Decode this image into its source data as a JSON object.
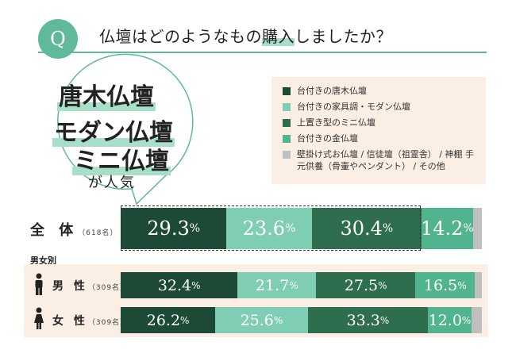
{
  "header": {
    "q_badge": "Q",
    "question_pre": "仏壇はどのようなもの",
    "question_highlight": "購入",
    "question_post": "しましたか？"
  },
  "callout": {
    "line1": "唐木仏壇",
    "line2": "モダン仏壇",
    "line3": "ミニ仏壇",
    "line4": "が人気"
  },
  "colors": {
    "accent": "#5fb99a",
    "panel_bg": "#fbeee4"
  },
  "chart_data": {
    "type": "bar",
    "orientation": "horizontal-stacked-100",
    "title": "仏壇はどのようなもの購入しましたか？",
    "group_label": "男女別",
    "categories": [
      {
        "label": "全 体",
        "n": "（618名）"
      },
      {
        "label": "男 性",
        "n": "（309名）"
      },
      {
        "label": "女 性",
        "n": "（309名）"
      }
    ],
    "series": [
      {
        "name": "台付きの唐木仏壇",
        "color": "#1c4a36",
        "values": [
          29.3,
          32.4,
          26.2
        ]
      },
      {
        "name": "台付きの家具調・モダン仏壇",
        "color": "#7fceb3",
        "values": [
          23.6,
          21.7,
          25.6
        ]
      },
      {
        "name": "上置き型のミニ仏壇",
        "color": "#2e6e4f",
        "values": [
          30.4,
          27.5,
          33.3
        ]
      },
      {
        "name": "台付きの金仏壇",
        "color": "#52b48e",
        "values": [
          14.2,
          16.5,
          12.0
        ]
      },
      {
        "name": "壁掛け式お仏壇 / 信徒壇（祖霊舎） / 神棚 手元供養（骨壷やペンダント） / その他",
        "color": "#bfbfbf",
        "values": [
          2.5,
          1.9,
          2.9
        ]
      }
    ],
    "labels": [
      [
        "29.3",
        "23.6",
        "30.4",
        "14.2",
        ""
      ],
      [
        "32.4",
        "21.7",
        "27.5",
        "16.5",
        ""
      ],
      [
        "26.2",
        "25.6",
        "33.3",
        "12.0",
        ""
      ]
    ],
    "unit": "%",
    "xlim": [
      0,
      100
    ]
  }
}
